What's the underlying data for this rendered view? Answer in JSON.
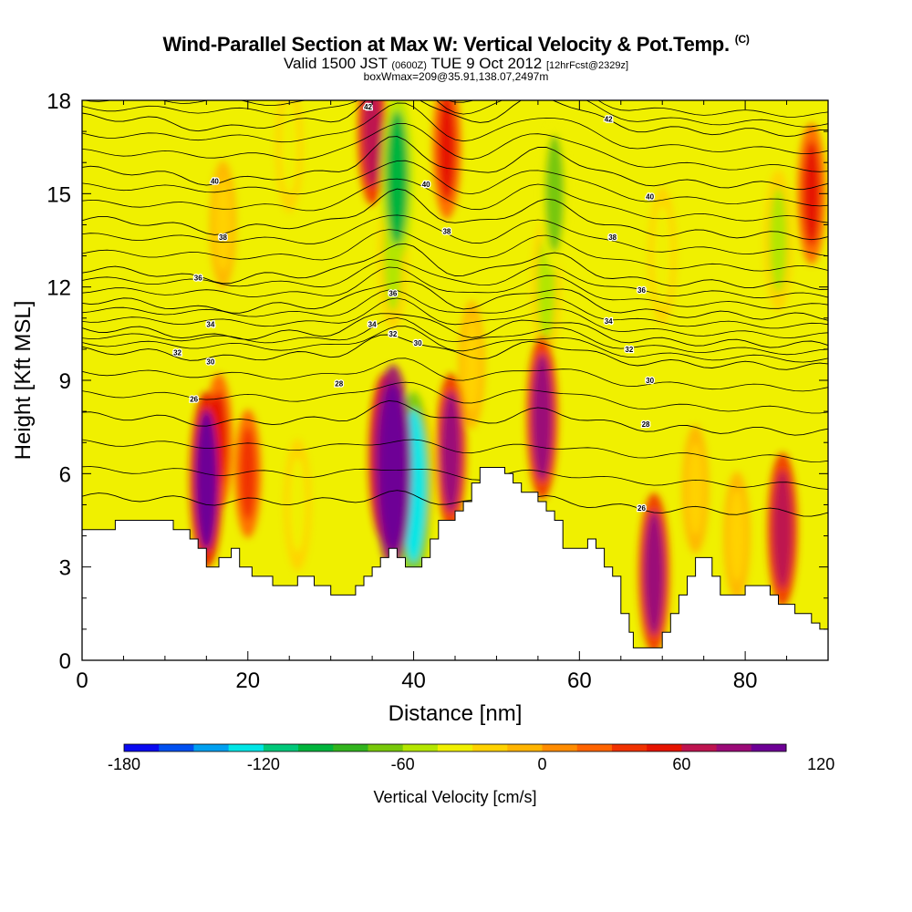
{
  "header": {
    "title": "Wind-Parallel Section at Max W: Vertical Velocity & Pot.Temp.",
    "copyright": "(C)",
    "valid_prefix": "Valid 1500 JST",
    "valid_zone": "(0600Z)",
    "valid_date": "TUE 9 Oct 2012",
    "forecast": "[12hrFcst@2329z]",
    "box_info": "boxWmax=209@35.91,138.07,2497m"
  },
  "chart_data": {
    "type": "heatmap",
    "xlabel": "Distance [nm]",
    "ylabel": "Height [Kft MSL]",
    "xlim": [
      0,
      90
    ],
    "ylim": [
      0,
      18
    ],
    "xticks": [
      0,
      20,
      40,
      60,
      80
    ],
    "yticks": [
      0,
      3,
      6,
      9,
      12,
      15,
      18
    ],
    "colorbar": {
      "label": "Vertical Velocity [cm/s]",
      "ticks": [
        -180,
        -120,
        -60,
        0,
        60,
        120
      ],
      "levels": [
        -180,
        -165,
        -150,
        -135,
        -120,
        -105,
        -90,
        -75,
        -60,
        -45,
        -30,
        -15,
        0,
        15,
        30,
        45,
        60,
        75,
        90,
        105,
        120,
        135,
        150
      ],
      "colors": [
        "#0a0af0",
        "#0050f0",
        "#00a0f0",
        "#00e6e6",
        "#00c87a",
        "#00b43c",
        "#32b41e",
        "#78c80a",
        "#b4e600",
        "#f0f000",
        "#ffd200",
        "#ffb400",
        "#ff8c00",
        "#ff6400",
        "#f03200",
        "#e61400",
        "#be1450",
        "#9b0a78",
        "#6e0096"
      ]
    },
    "terrain_kft": [
      [
        0,
        4.2
      ],
      [
        4,
        4.2
      ],
      [
        4,
        4.5
      ],
      [
        11,
        4.5
      ],
      [
        11,
        4.2
      ],
      [
        13,
        4.2
      ],
      [
        13,
        3.9
      ],
      [
        14,
        3.9
      ],
      [
        14,
        3.6
      ],
      [
        15,
        3.6
      ],
      [
        15,
        3.0
      ],
      [
        16.5,
        3.0
      ],
      [
        16.5,
        3.3
      ],
      [
        18,
        3.3
      ],
      [
        18,
        3.6
      ],
      [
        19,
        3.6
      ],
      [
        19,
        3.0
      ],
      [
        20.5,
        3.0
      ],
      [
        20.5,
        2.7
      ],
      [
        23,
        2.7
      ],
      [
        23,
        2.4
      ],
      [
        26,
        2.4
      ],
      [
        26,
        2.7
      ],
      [
        28,
        2.7
      ],
      [
        28,
        2.4
      ],
      [
        30,
        2.4
      ],
      [
        30,
        2.1
      ],
      [
        33,
        2.1
      ],
      [
        33,
        2.4
      ],
      [
        34,
        2.4
      ],
      [
        34,
        2.7
      ],
      [
        35,
        2.7
      ],
      [
        35,
        3.0
      ],
      [
        36,
        3.0
      ],
      [
        36,
        3.3
      ],
      [
        37,
        3.3
      ],
      [
        37,
        3.6
      ],
      [
        38,
        3.6
      ],
      [
        38,
        3.3
      ],
      [
        39,
        3.3
      ],
      [
        39,
        3.0
      ],
      [
        41,
        3.0
      ],
      [
        41,
        3.3
      ],
      [
        42,
        3.3
      ],
      [
        42,
        3.9
      ],
      [
        43,
        3.9
      ],
      [
        43,
        4.5
      ],
      [
        45,
        4.5
      ],
      [
        45,
        4.8
      ],
      [
        46,
        4.8
      ],
      [
        46,
        5.1
      ],
      [
        47,
        5.1
      ],
      [
        47,
        5.7
      ],
      [
        48,
        5.7
      ],
      [
        48,
        6.2
      ],
      [
        51,
        6.2
      ],
      [
        51,
        6.0
      ],
      [
        52,
        6.0
      ],
      [
        52,
        5.7
      ],
      [
        53,
        5.7
      ],
      [
        53,
        5.4
      ],
      [
        55,
        5.4
      ],
      [
        55,
        5.1
      ],
      [
        56,
        5.1
      ],
      [
        56,
        4.8
      ],
      [
        57,
        4.8
      ],
      [
        57,
        4.5
      ],
      [
        58,
        4.5
      ],
      [
        58,
        3.6
      ],
      [
        61,
        3.6
      ],
      [
        61,
        3.9
      ],
      [
        62,
        3.9
      ],
      [
        62,
        3.6
      ],
      [
        63,
        3.6
      ],
      [
        63,
        3.0
      ],
      [
        64,
        3.0
      ],
      [
        64,
        2.7
      ],
      [
        65,
        2.7
      ],
      [
        65,
        1.5
      ],
      [
        66,
        1.5
      ],
      [
        66,
        0.9
      ],
      [
        66.5,
        0.9
      ],
      [
        66.5,
        0.4
      ],
      [
        70,
        0.4
      ],
      [
        70,
        0.9
      ],
      [
        71,
        0.9
      ],
      [
        71,
        1.5
      ],
      [
        72,
        1.5
      ],
      [
        72,
        2.1
      ],
      [
        73,
        2.1
      ],
      [
        73,
        2.7
      ],
      [
        74,
        2.7
      ],
      [
        74,
        3.3
      ],
      [
        76,
        3.3
      ],
      [
        76,
        2.7
      ],
      [
        77,
        2.7
      ],
      [
        77,
        2.1
      ],
      [
        80,
        2.1
      ],
      [
        80,
        2.4
      ],
      [
        83,
        2.4
      ],
      [
        83,
        2.1
      ],
      [
        84,
        2.1
      ],
      [
        84,
        1.8
      ],
      [
        86,
        1.8
      ],
      [
        86,
        1.5
      ],
      [
        88,
        1.5
      ],
      [
        88,
        1.2
      ],
      [
        89,
        1.2
      ],
      [
        89,
        1.0
      ],
      [
        90,
        1.0
      ]
    ],
    "vertical_velocity_cells": [
      {
        "x": 15,
        "z": 5.8,
        "v": 105
      },
      {
        "x": 16.5,
        "z": 7,
        "v": 45
      },
      {
        "x": 20,
        "z": 6,
        "v": 30
      },
      {
        "x": 37.5,
        "z": 6.2,
        "v": 150
      },
      {
        "x": 36.5,
        "z": 6.5,
        "v": 95
      },
      {
        "x": 40,
        "z": 5.6,
        "v": -125
      },
      {
        "x": 41,
        "z": 6,
        "v": -40
      },
      {
        "x": 44.5,
        "z": 6.7,
        "v": 75
      },
      {
        "x": 55.5,
        "z": 7.8,
        "v": 85
      },
      {
        "x": 69,
        "z": 2.8,
        "v": 80
      },
      {
        "x": 84.5,
        "z": 4.2,
        "v": 70
      },
      {
        "x": 38,
        "z": 15.5,
        "v": -95
      },
      {
        "x": 37.5,
        "z": 13,
        "v": -60
      },
      {
        "x": 57,
        "z": 15,
        "v": -70
      },
      {
        "x": 56,
        "z": 12,
        "v": -55
      },
      {
        "x": 70,
        "z": 13,
        "v": -45
      },
      {
        "x": 84,
        "z": 13.5,
        "v": -50
      },
      {
        "x": 25,
        "z": 16.5,
        "v": -35
      },
      {
        "x": 17,
        "z": 14,
        "v": -30
      },
      {
        "x": 47,
        "z": 9.5,
        "v": -30
      },
      {
        "x": 26,
        "z": 5,
        "v": -35
      },
      {
        "x": 74,
        "z": 5.5,
        "v": -30
      },
      {
        "x": 79,
        "z": 4,
        "v": -30
      },
      {
        "x": 35,
        "z": 17,
        "v": 60
      },
      {
        "x": 44,
        "z": 16.5,
        "v": 55
      },
      {
        "x": 88,
        "z": 15,
        "v": 50
      }
    ],
    "theta_contours": [
      {
        "label": "26",
        "z": 5.0,
        "bump": 0.3
      },
      {
        "label": "28",
        "z": 7.6,
        "bump": 0.6
      },
      {
        "label": "30",
        "z": 9.7,
        "bump": 0.7
      },
      {
        "label": "32",
        "z": 10.4,
        "bump": 0.8
      },
      {
        "label": "34",
        "z": 11.3,
        "bump": 0.9
      },
      {
        "label": "36",
        "z": 12.3,
        "bump": 1.0
      },
      {
        "label": "38",
        "z": 13.9,
        "bump": 1.1
      },
      {
        "label": "40",
        "z": 15.5,
        "bump": 1.2
      },
      {
        "label": "42",
        "z": 17.2,
        "bump": 1.2
      }
    ],
    "contour_labels": [
      {
        "text": "26",
        "x": 13.5,
        "z": 8.4
      },
      {
        "text": "28",
        "x": 31,
        "z": 8.9
      },
      {
        "text": "28",
        "x": 68,
        "z": 7.6
      },
      {
        "text": "26",
        "x": 67.5,
        "z": 4.9
      },
      {
        "text": "30",
        "x": 15.5,
        "z": 9.6
      },
      {
        "text": "30",
        "x": 40.5,
        "z": 10.2
      },
      {
        "text": "30",
        "x": 68.5,
        "z": 9.0
      },
      {
        "text": "32",
        "x": 11.5,
        "z": 9.9
      },
      {
        "text": "32",
        "x": 37.5,
        "z": 10.5
      },
      {
        "text": "32",
        "x": 66,
        "z": 10.0
      },
      {
        "text": "34",
        "x": 15.5,
        "z": 10.8
      },
      {
        "text": "34",
        "x": 35,
        "z": 10.8
      },
      {
        "text": "34",
        "x": 63.5,
        "z": 10.9
      },
      {
        "text": "36",
        "x": 14,
        "z": 12.3
      },
      {
        "text": "36",
        "x": 37.5,
        "z": 11.8
      },
      {
        "text": "36",
        "x": 67.5,
        "z": 11.9
      },
      {
        "text": "38",
        "x": 17,
        "z": 13.6
      },
      {
        "text": "38",
        "x": 44,
        "z": 13.8
      },
      {
        "text": "38",
        "x": 64,
        "z": 13.6
      },
      {
        "text": "40",
        "x": 16,
        "z": 15.4
      },
      {
        "text": "40",
        "x": 41.5,
        "z": 15.3
      },
      {
        "text": "40",
        "x": 68.5,
        "z": 14.9
      },
      {
        "text": "42",
        "x": 34.5,
        "z": 17.8
      },
      {
        "text": "42",
        "x": 63.5,
        "z": 17.4
      }
    ]
  }
}
